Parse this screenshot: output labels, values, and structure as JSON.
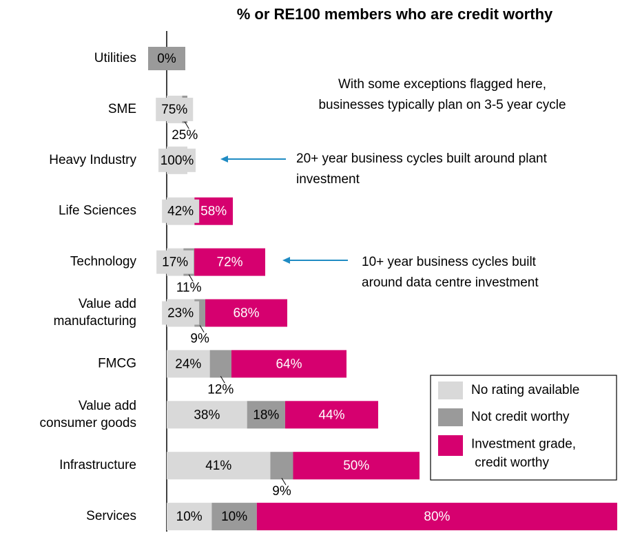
{
  "chart_data": {
    "type": "stacked-bar-horizontal",
    "title": "% or RE100 members who are credit worthy",
    "categories": [
      "Utilities",
      "SME",
      "Heavy Industry",
      "Life Sciences",
      "Technology",
      "Value add\nmanufacturing",
      "FMCG",
      "Value add\nconsumer goods",
      "Infrastructure",
      "Services"
    ],
    "series": [
      {
        "name": "No rating available",
        "color": "#d9d9d9",
        "values": [
          null,
          75,
          100,
          42,
          17,
          23,
          24,
          38,
          41,
          10
        ],
        "value_labels": [
          null,
          "75%",
          "100%",
          "42%",
          "17%",
          "23%",
          "24%",
          "38%",
          "41%",
          "10%"
        ]
      },
      {
        "name": "Not credit worthy",
        "color": "#9a9a9a",
        "values": [
          0,
          25,
          null,
          null,
          11,
          9,
          12,
          18,
          9,
          10
        ],
        "value_labels": [
          "0%",
          "25%",
          null,
          null,
          "11%",
          "9%",
          "12%",
          "18%",
          "9%",
          "10%"
        ]
      },
      {
        "name": "Investment grade,\n credit worthy",
        "color": "#d6006f",
        "values": [
          null,
          null,
          null,
          58,
          72,
          68,
          64,
          44,
          50,
          80
        ],
        "value_labels": [
          null,
          null,
          null,
          "58%",
          "72%",
          "68%",
          "64%",
          "44%",
          "50%",
          "80%"
        ]
      }
    ],
    "annotations": [
      "With some exceptions flagged here,\nbusinesses typically plan on 3-5 year cycle",
      "20+ year business cycles built around plant\ninvestment",
      "10+ year business cycles built\naround data centre investment"
    ],
    "legend": "bottom-right"
  }
}
